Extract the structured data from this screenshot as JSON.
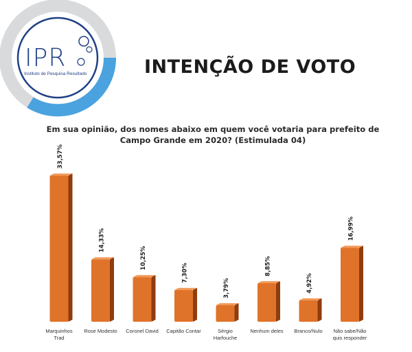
{
  "logo": {
    "abbr": "IPR",
    "full_name": "Instituto de Pesquisa Resultado"
  },
  "headline": "INTENÇÃO DE VOTO",
  "question": {
    "line1": "Em sua opinião, dos nomes abaixo em quem você votaria para prefeito de",
    "line2": "Campo Grande em 2020? (Estimulada 04)"
  },
  "colors": {
    "bar_front": "#e0732a",
    "bar_side": "#8f3c0f",
    "bar_top": "#f29a5a",
    "logo_ring_gray": "#d9dadc",
    "logo_ring_blue": "#4aa3df",
    "logo_navy": "#1f3f86"
  },
  "chart_data": {
    "type": "bar",
    "title": "Em sua opinião, dos nomes abaixo em quem você votaria para prefeito de Campo Grande em 2020? (Estimulada 04)",
    "categories": [
      [
        "Marquinhos",
        "Trad"
      ],
      [
        "Rose Modesto"
      ],
      [
        "Coronel David"
      ],
      [
        "Capitão Contar"
      ],
      [
        "Sérgio",
        "Harfouche"
      ],
      [
        "Nenhum deles"
      ],
      [
        "Branco/Nulo"
      ],
      [
        "Não sabe/Não",
        "quis responder"
      ]
    ],
    "values": [
      33.57,
      14.33,
      10.25,
      7.3,
      3.79,
      8.85,
      4.92,
      16.99
    ],
    "value_labels": [
      "33,57%",
      "14,33%",
      "10,25%",
      "7,30%",
      "3,79%",
      "8,85%",
      "4,92%",
      "16,99%"
    ],
    "ylim": [
      0,
      36
    ],
    "grid": false,
    "legend": "none",
    "xlabel": "",
    "ylabel": ""
  }
}
